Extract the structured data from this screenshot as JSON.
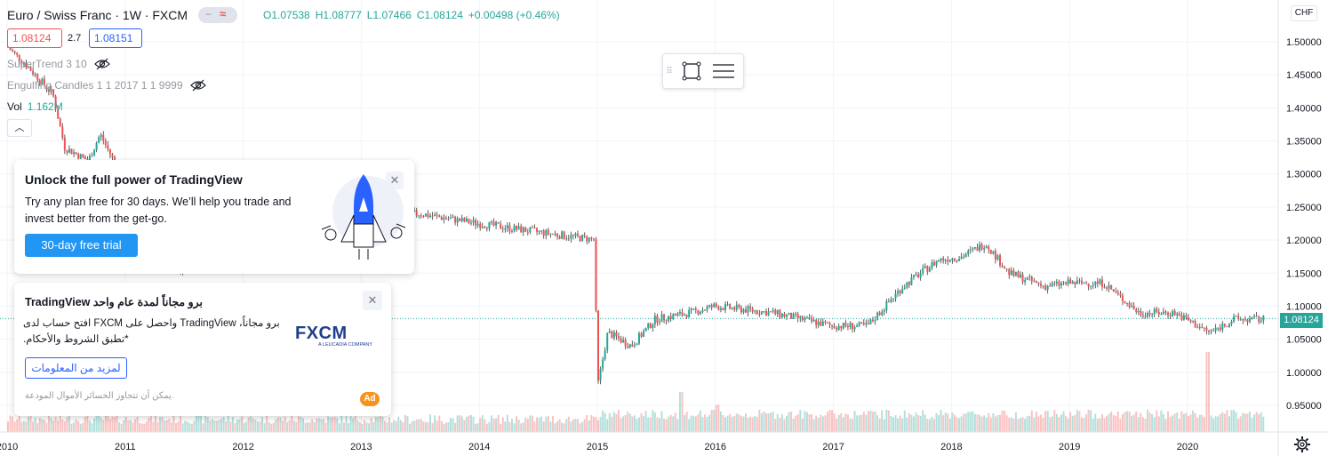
{
  "header": {
    "symbol": "Euro / Swiss Franc · 1W · FXCM",
    "ohlc": {
      "open": "O1.07538",
      "high": "H1.08777",
      "low": "L1.07466",
      "close": "C1.08124",
      "change": "+0.00498 (+0.46%)"
    },
    "bid": "1.08124",
    "spread": "2.7",
    "ask": "1.08151"
  },
  "indicators": [
    {
      "label": "SuperTrend 3 10",
      "icon": "eye-off-icon"
    },
    {
      "label": "Engulfing Candles 1 1 2017 1 1 9999",
      "icon": "eye-off-icon"
    }
  ],
  "volume": {
    "label": "Vol",
    "value": "1.162M"
  },
  "drawing_toolbar": {
    "tools": [
      "rectangle-icon",
      "settings-lines-icon"
    ]
  },
  "promo": {
    "title": "Unlock the full power of TradingView",
    "text": "Try any plan free for 30 days. We’ll help you trade and invest better from the get-go.",
    "button": "30-day free trial"
  },
  "ad": {
    "title": "برو مجاناً لمدة عام واحد TradingView",
    "text": "برو مجاناً، TradingView واحصل على FXCM افتح حساب لدى *تطبق الشروط والأحكام.",
    "button": "لمزيد من المعلومات",
    "disclaimer": "يمكن أن تتجاوز الخسائر الأموال المودعة.",
    "badge": "Ad",
    "logo": "FXCM",
    "logo_sub": "A LEUCADIA COMPANY"
  },
  "price_axis": {
    "currency": "CHF",
    "last_price": "1.08124",
    "ticks": [
      "1.50000",
      "1.45000",
      "1.40000",
      "1.35000",
      "1.30000",
      "1.25000",
      "1.20000",
      "1.15000",
      "1.10000",
      "1.05000",
      "1.00000",
      "0.95000"
    ]
  },
  "colors": {
    "up": "#26a69a",
    "down": "#ef5350",
    "accent": "#2196f3",
    "brand": "#2962ff"
  },
  "chart_data": {
    "type": "candlestick",
    "title": "Euro / Swiss Franc · 1W · FXCM",
    "x_axis_labels": [
      "2010",
      "2011",
      "2012",
      "2013",
      "2014",
      "2015",
      "2016",
      "2017",
      "2018",
      "2019",
      "2020"
    ],
    "ylim": [
      0.92,
      1.52
    ],
    "grid": true,
    "last_close": 1.08124,
    "price_path": [
      [
        "2010.0",
        1.495
      ],
      [
        "2010.2",
        1.46
      ],
      [
        "2010.4",
        1.42
      ],
      [
        "2010.5",
        1.34
      ],
      [
        "2010.7",
        1.32
      ],
      [
        "2010.8",
        1.36
      ],
      [
        "2011.0",
        1.29
      ],
      [
        "2011.5",
        1.15
      ],
      [
        "2011.7",
        1.2
      ],
      [
        "2012.8",
        1.21
      ],
      [
        "2013.0",
        1.235
      ],
      [
        "2013.5",
        1.24
      ],
      [
        "2014.0",
        1.225
      ],
      [
        "2014.8",
        1.205
      ],
      [
        "2014.99",
        1.201
      ],
      [
        "2015.01",
        0.975
      ],
      [
        "2015.1",
        1.06
      ],
      [
        "2015.3",
        1.04
      ],
      [
        "2015.5",
        1.08
      ],
      [
        "2015.8",
        1.09
      ],
      [
        "2016.0",
        1.1
      ],
      [
        "2016.5",
        1.09
      ],
      [
        "2017.0",
        1.07
      ],
      [
        "2017.3",
        1.07
      ],
      [
        "2017.6",
        1.13
      ],
      [
        "2017.9",
        1.17
      ],
      [
        "2018.1",
        1.175
      ],
      [
        "2018.3",
        1.195
      ],
      [
        "2018.5",
        1.15
      ],
      [
        "2018.8",
        1.13
      ],
      [
        "2019.0",
        1.135
      ],
      [
        "2019.3",
        1.135
      ],
      [
        "2019.6",
        1.09
      ],
      [
        "2019.9",
        1.09
      ],
      [
        "2020.2",
        1.06
      ],
      [
        "2020.4",
        1.08
      ],
      [
        "2020.6",
        1.08
      ]
    ],
    "volume_spikes": [
      [
        "2020.17",
        0.5
      ],
      [
        "2015.7",
        0.25
      ],
      [
        "2016.0",
        0.17
      ]
    ]
  }
}
